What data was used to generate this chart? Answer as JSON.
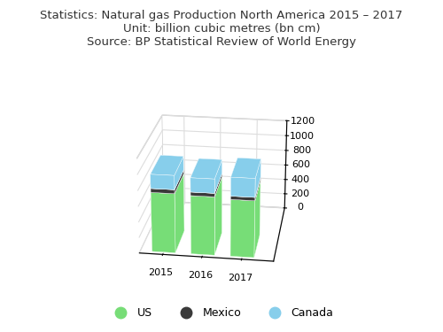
{
  "title_line1": "Statistics: Natural gas Production North America 2015 – 2017",
  "title_line2": "Unit: billion cubic metres (bn cm)",
  "title_line3": "Source: BP Statistical Review of World Energy",
  "years": [
    "2015",
    "2016",
    "2017"
  ],
  "us_values": [
    762,
    749,
    728
  ],
  "mexico_values": [
    50,
    45,
    42
  ],
  "canada_values": [
    178,
    178,
    235
  ],
  "us_color": "#77dd77",
  "mexico_color": "#3a3a3a",
  "canada_color": "#87ceeb",
  "legend_labels": [
    "US",
    "Mexico",
    "Canada"
  ],
  "ylim": [
    0,
    1200
  ],
  "yticks": [
    0,
    200,
    400,
    600,
    800,
    1000,
    1200
  ],
  "background_color": "#f0f0f0",
  "title_fontsize": 9.5,
  "bar_width": 0.6,
  "bar_depth": 0.5,
  "elev": 22,
  "azim": -82
}
